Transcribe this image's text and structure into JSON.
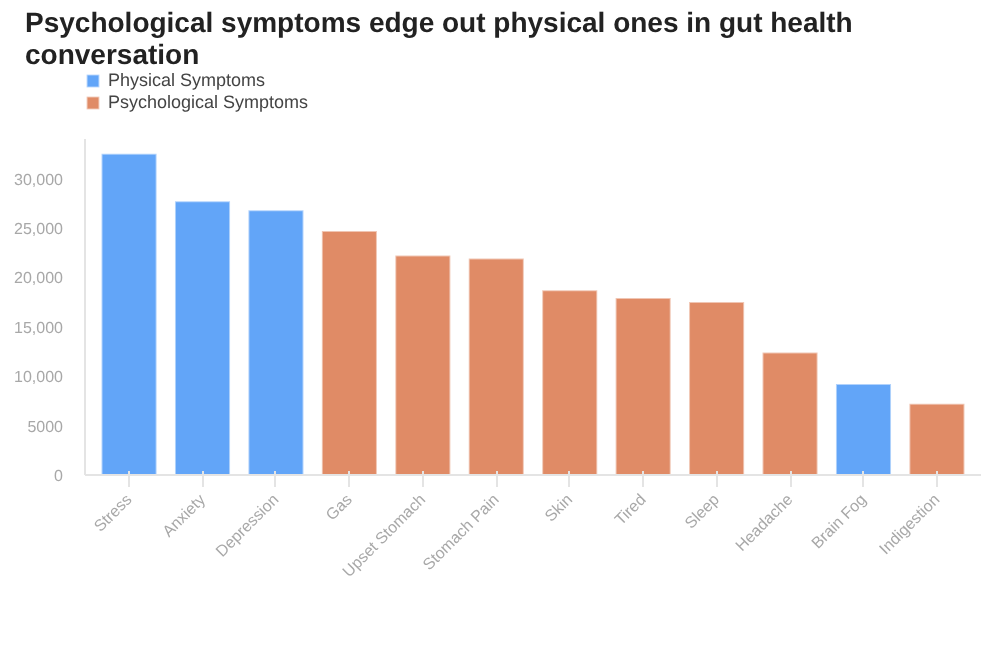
{
  "chart_data": {
    "type": "bar",
    "title": "Psychological symptoms edge out physical ones in gut health conversation",
    "categories": [
      "Stress",
      "Anxiety",
      "Depression",
      "Gas",
      "Upset Stomach",
      "Stomach Pain",
      "Skin",
      "Tired",
      "Sleep",
      "Headache",
      "Brain Fog",
      "Indigestion"
    ],
    "series": [
      {
        "name": "Physical Symptoms",
        "color": "#62a5f8",
        "values": [
          32500,
          27700,
          26800,
          null,
          null,
          null,
          null,
          null,
          null,
          null,
          9200,
          null
        ]
      },
      {
        "name": "Psychological Symptoms",
        "color": "#e08b66",
        "values": [
          null,
          null,
          null,
          24700,
          22200,
          21900,
          18700,
          17900,
          17500,
          12400,
          null,
          7200
        ]
      }
    ],
    "stacked": true,
    "ylim": [
      0,
      34000
    ],
    "yticks": [
      0,
      {
        "value": 5000,
        "label": "5000"
      },
      {
        "value": 10000,
        "label": "10,000"
      },
      {
        "value": 15000,
        "label": "15,000"
      },
      {
        "value": 20000,
        "label": "20,000"
      },
      {
        "value": 25000,
        "label": "25,000"
      },
      {
        "value": 30000,
        "label": "30,000"
      }
    ],
    "grid": false,
    "legend": "top left"
  }
}
